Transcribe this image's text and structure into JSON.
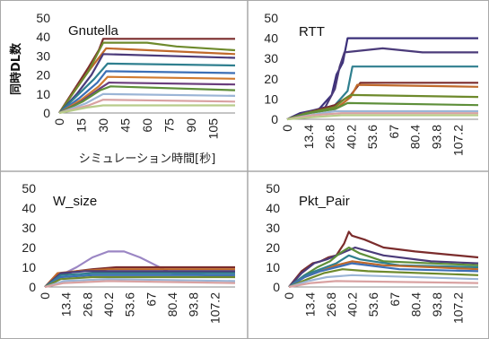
{
  "chart_data": [
    {
      "type": "line",
      "title": "Gnutella",
      "ylabel": "同時DL数",
      "xlabel": "シミュレーション時間[秒]",
      "ylim": [
        0,
        50
      ],
      "yticks": [
        0,
        10,
        20,
        30,
        40,
        50
      ],
      "xlim": [
        0,
        120
      ],
      "xticks": [
        0,
        15,
        30,
        45,
        60,
        75,
        90,
        105
      ],
      "grid": false,
      "series": [
        {
          "color": "#7b2c2c",
          "x": [
            0,
            10,
            20,
            27,
            30,
            120
          ],
          "y": [
            0,
            12,
            24,
            33,
            39,
            39
          ]
        },
        {
          "color": "#c06a2b",
          "x": [
            0,
            10,
            20,
            28,
            32,
            120
          ],
          "y": [
            0,
            11,
            22,
            30,
            34,
            31
          ]
        },
        {
          "color": "#6e8a2c",
          "x": [
            0,
            10,
            20,
            30,
            60,
            80,
            120
          ],
          "y": [
            0,
            11,
            22,
            37,
            37,
            35,
            33
          ]
        },
        {
          "color": "#4b3b7a",
          "x": [
            0,
            12,
            22,
            30,
            120
          ],
          "y": [
            0,
            10,
            20,
            31,
            29
          ]
        },
        {
          "color": "#2f7f8f",
          "x": [
            0,
            12,
            24,
            33,
            120
          ],
          "y": [
            0,
            9,
            18,
            26,
            25
          ]
        },
        {
          "color": "#3c6fb6",
          "x": [
            0,
            14,
            26,
            32,
            120
          ],
          "y": [
            0,
            8,
            16,
            22,
            21
          ]
        },
        {
          "color": "#d07a30",
          "x": [
            0,
            15,
            27,
            33,
            120
          ],
          "y": [
            0,
            7,
            14,
            19,
            18
          ]
        },
        {
          "color": "#6a3d7c",
          "x": [
            0,
            15,
            28,
            34,
            120
          ],
          "y": [
            0,
            6,
            13,
            16,
            15
          ]
        },
        {
          "color": "#5e8f3a",
          "x": [
            0,
            16,
            28,
            35,
            120
          ],
          "y": [
            0,
            6,
            12,
            14,
            12
          ]
        },
        {
          "color": "#9bb5d6",
          "x": [
            0,
            18,
            30,
            120
          ],
          "y": [
            0,
            5,
            10,
            9
          ]
        },
        {
          "color": "#d9a2a2",
          "x": [
            0,
            20,
            30,
            120
          ],
          "y": [
            0,
            4,
            7,
            6
          ]
        },
        {
          "color": "#b8cc8a",
          "x": [
            0,
            20,
            30,
            120
          ],
          "y": [
            0,
            3,
            4,
            4
          ]
        }
      ]
    },
    {
      "type": "line",
      "title": "RTT",
      "ylim": [
        0,
        50
      ],
      "yticks": [
        0,
        10,
        20,
        30,
        40,
        50
      ],
      "xlim": [
        0,
        120
      ],
      "xticks": [
        0,
        13.4,
        26.8,
        40.2,
        53.6,
        67,
        80.4,
        93.8,
        107.2
      ],
      "grid": false,
      "series": [
        {
          "color": "#3a2f7a",
          "x": [
            0,
            8,
            20,
            28,
            31,
            35,
            38,
            120
          ],
          "y": [
            0,
            3,
            5,
            12,
            22,
            28,
            40,
            40
          ]
        },
        {
          "color": "#4b3b7a",
          "x": [
            0,
            10,
            24,
            30,
            33,
            36,
            60,
            85,
            120
          ],
          "y": [
            0,
            3,
            6,
            15,
            26,
            33,
            35,
            33,
            33
          ]
        },
        {
          "color": "#2f7f8f",
          "x": [
            0,
            12,
            30,
            38,
            41,
            120
          ],
          "y": [
            0,
            3,
            7,
            14,
            26,
            26
          ]
        },
        {
          "color": "#7b2c2c",
          "x": [
            0,
            12,
            30,
            40,
            46,
            120
          ],
          "y": [
            0,
            3,
            7,
            12,
            18,
            18
          ]
        },
        {
          "color": "#c06a2b",
          "x": [
            0,
            12,
            32,
            40,
            44,
            120
          ],
          "y": [
            0,
            3,
            6,
            11,
            17,
            16
          ]
        },
        {
          "color": "#6e8a2c",
          "x": [
            0,
            12,
            30,
            36,
            40,
            120
          ],
          "y": [
            0,
            3,
            6,
            10,
            12,
            11
          ]
        },
        {
          "color": "#5e8f3a",
          "x": [
            0,
            14,
            30,
            38,
            120
          ],
          "y": [
            0,
            3,
            5,
            8,
            7
          ]
        },
        {
          "color": "#9bb5d6",
          "x": [
            0,
            14,
            30,
            120
          ],
          "y": [
            0,
            2,
            4,
            4
          ]
        },
        {
          "color": "#d9a2a2",
          "x": [
            0,
            16,
            34,
            120
          ],
          "y": [
            0,
            2,
            3,
            3
          ]
        },
        {
          "color": "#b8cc8a",
          "x": [
            0,
            16,
            34,
            120
          ],
          "y": [
            0,
            1,
            2,
            2
          ]
        }
      ]
    },
    {
      "type": "line",
      "title": "W_size",
      "ylim": [
        0,
        50
      ],
      "yticks": [
        0,
        10,
        20,
        30,
        40,
        50
      ],
      "xlim": [
        0,
        120
      ],
      "xticks": [
        0,
        13.4,
        26.8,
        40.2,
        53.6,
        67,
        80.4,
        93.8,
        107.2
      ],
      "grid": false,
      "series": [
        {
          "color": "#9b86c4",
          "x": [
            0,
            10,
            20,
            30,
            40,
            50,
            60,
            70,
            80,
            120
          ],
          "y": [
            0,
            6,
            10,
            15,
            18,
            18,
            15,
            11,
            7,
            5
          ]
        },
        {
          "color": "#7b2c2c",
          "x": [
            0,
            8,
            20,
            30,
            45,
            120
          ],
          "y": [
            0,
            6,
            8,
            9,
            10,
            10
          ]
        },
        {
          "color": "#c06a2b",
          "x": [
            0,
            8,
            20,
            40,
            120
          ],
          "y": [
            0,
            7,
            8,
            9,
            9
          ]
        },
        {
          "color": "#4b3b7a",
          "x": [
            0,
            10,
            25,
            120
          ],
          "y": [
            0,
            7,
            8,
            8
          ]
        },
        {
          "color": "#2f7f8f",
          "x": [
            0,
            10,
            30,
            120
          ],
          "y": [
            0,
            6,
            7,
            7
          ]
        },
        {
          "color": "#3c6fb6",
          "x": [
            0,
            10,
            30,
            120
          ],
          "y": [
            0,
            5,
            6,
            6
          ]
        },
        {
          "color": "#6e8a2c",
          "x": [
            0,
            10,
            30,
            120
          ],
          "y": [
            0,
            4,
            5,
            5
          ]
        },
        {
          "color": "#9bb5d6",
          "x": [
            0,
            12,
            40,
            120
          ],
          "y": [
            0,
            3,
            4,
            3
          ]
        },
        {
          "color": "#d9a2a2",
          "x": [
            0,
            12,
            40,
            120
          ],
          "y": [
            0,
            2,
            3,
            2
          ]
        }
      ]
    },
    {
      "type": "line",
      "title": "Pkt_Pair",
      "ylim": [
        0,
        50
      ],
      "yticks": [
        0,
        10,
        20,
        30,
        40,
        50
      ],
      "xlim": [
        0,
        120
      ],
      "xticks": [
        0,
        13.4,
        26.8,
        40.2,
        53.6,
        67,
        80.4,
        93.8,
        107.2
      ],
      "grid": false,
      "series": [
        {
          "color": "#7b2c2c",
          "x": [
            0,
            8,
            15,
            20,
            25,
            30,
            35,
            38,
            40,
            48,
            60,
            80,
            120
          ],
          "y": [
            0,
            8,
            12,
            13,
            15,
            16,
            22,
            28,
            26,
            24,
            20,
            18,
            15
          ]
        },
        {
          "color": "#4b3b7a",
          "x": [
            0,
            8,
            16,
            24,
            30,
            36,
            42,
            60,
            90,
            120
          ],
          "y": [
            0,
            7,
            12,
            14,
            16,
            18,
            20,
            16,
            13,
            12
          ]
        },
        {
          "color": "#5e8f3a",
          "x": [
            0,
            10,
            18,
            26,
            32,
            38,
            45,
            60,
            120
          ],
          "y": [
            0,
            6,
            10,
            13,
            17,
            20,
            17,
            13,
            11
          ]
        },
        {
          "color": "#2f7f8f",
          "x": [
            0,
            10,
            20,
            30,
            38,
            45,
            70,
            120
          ],
          "y": [
            0,
            6,
            9,
            12,
            16,
            14,
            11,
            10
          ]
        },
        {
          "color": "#c06a2b",
          "x": [
            0,
            10,
            20,
            30,
            40,
            60,
            120
          ],
          "y": [
            0,
            5,
            8,
            11,
            13,
            11,
            9
          ]
        },
        {
          "color": "#3c6fb6",
          "x": [
            0,
            10,
            20,
            30,
            40,
            70,
            120
          ],
          "y": [
            0,
            5,
            8,
            10,
            12,
            9,
            8
          ]
        },
        {
          "color": "#6e8a2c",
          "x": [
            0,
            12,
            22,
            34,
            50,
            120
          ],
          "y": [
            0,
            4,
            7,
            9,
            8,
            6
          ]
        },
        {
          "color": "#9bb5d6",
          "x": [
            0,
            12,
            24,
            40,
            120
          ],
          "y": [
            0,
            3,
            5,
            6,
            4
          ]
        },
        {
          "color": "#d9a2a2",
          "x": [
            0,
            14,
            30,
            120
          ],
          "y": [
            0,
            2,
            3,
            2
          ]
        }
      ]
    }
  ]
}
